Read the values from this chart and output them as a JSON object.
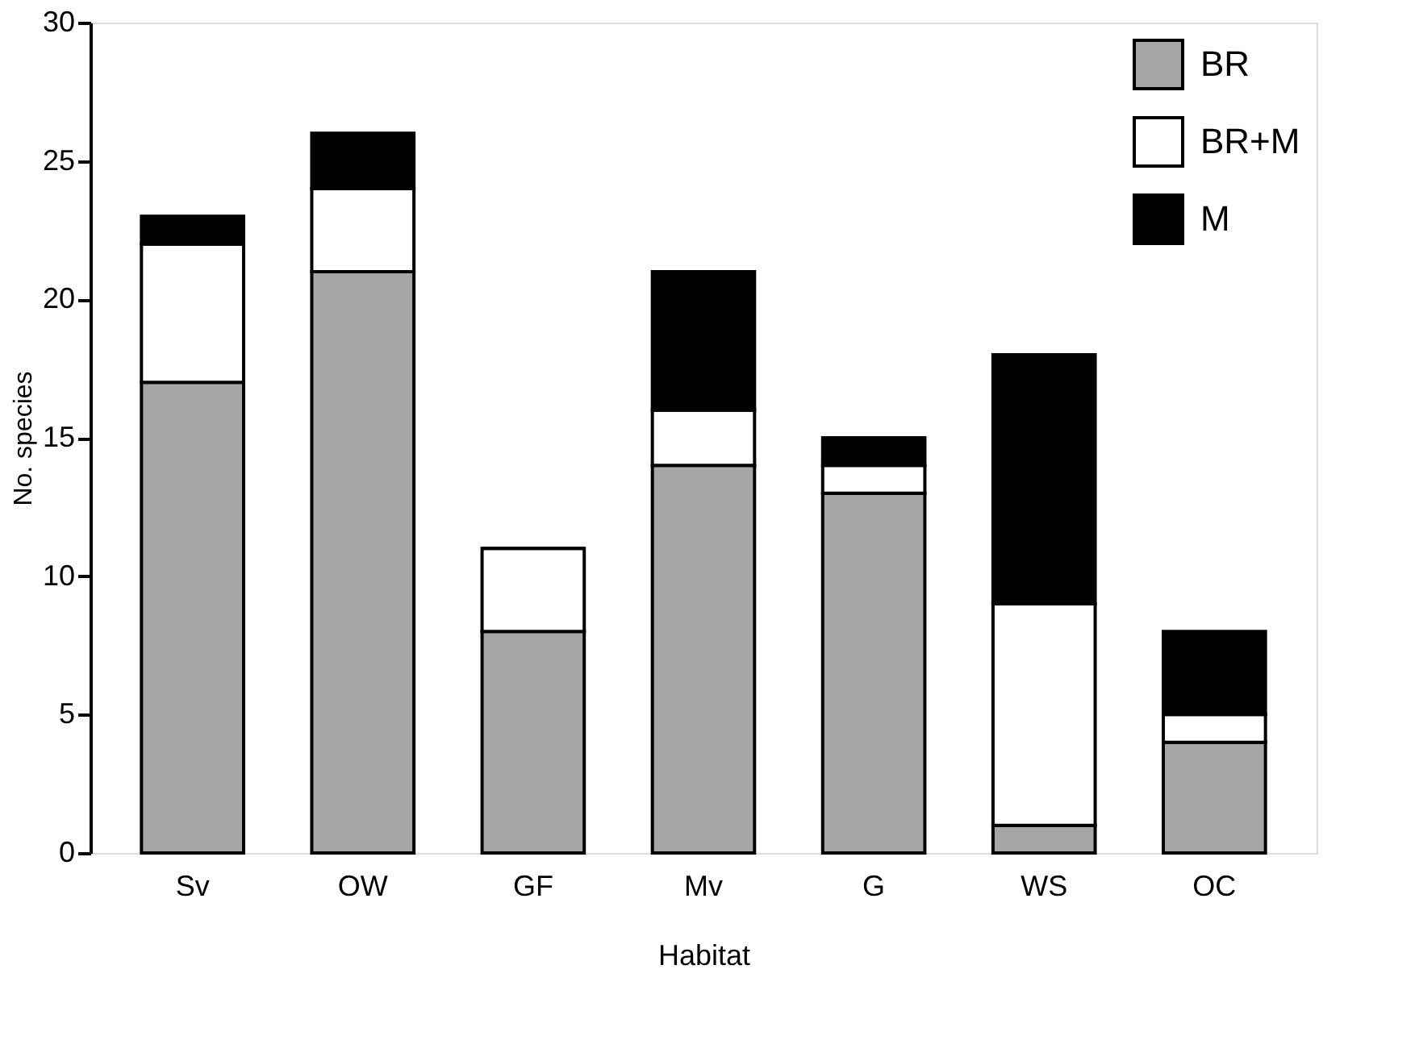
{
  "chart_data": {
    "type": "bar",
    "stacked": true,
    "xlabel": "Habitat",
    "ylabel": "No. species",
    "categories": [
      "Sv",
      "OW",
      "GF",
      "Mv",
      "G",
      "WS",
      "OC"
    ],
    "series": [
      {
        "name": "BR",
        "color": "#a6a6a6",
        "values": [
          17,
          21,
          8,
          14,
          13,
          1,
          4
        ]
      },
      {
        "name": "BR+M",
        "color": "#ffffff",
        "values": [
          5,
          3,
          3,
          2,
          1,
          8,
          1
        ]
      },
      {
        "name": "M",
        "color": "#000000",
        "values": [
          1,
          2,
          0,
          5,
          1,
          9,
          3
        ]
      }
    ],
    "ylim": [
      0,
      30
    ],
    "yticks": [
      0,
      5,
      10,
      15,
      20,
      25,
      30
    ],
    "grid": false,
    "legend": "top right"
  }
}
